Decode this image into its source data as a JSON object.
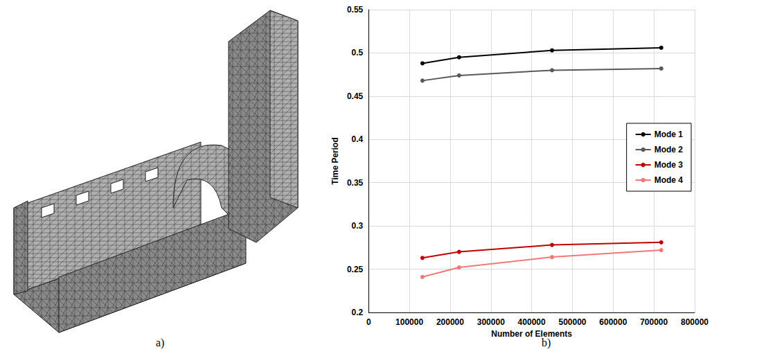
{
  "panel_labels": [
    "a)",
    "b)"
  ],
  "chart_data": {
    "type": "line",
    "x_label": "Number of Elements",
    "y_label": "Time Period",
    "x": [
      132000,
      222000,
      450000,
      718000
    ],
    "series": [
      {
        "name": "Mode 1",
        "color": "#000000",
        "values": [
          0.488,
          0.495,
          0.503,
          0.506
        ]
      },
      {
        "name": "Mode 2",
        "color": "#595959",
        "values": [
          0.468,
          0.474,
          0.48,
          0.482
        ]
      },
      {
        "name": "Mode 3",
        "color": "#c00000",
        "values": [
          0.263,
          0.27,
          0.278,
          0.281
        ]
      },
      {
        "name": "Mode 4",
        "color": "#f07878",
        "values": [
          0.241,
          0.252,
          0.264,
          0.272
        ]
      }
    ],
    "xlim": [
      0,
      800000
    ],
    "xticks": [
      0,
      100000,
      200000,
      300000,
      400000,
      500000,
      600000,
      700000,
      800000
    ],
    "ylim": [
      0.2,
      0.55
    ],
    "yticks": [
      0.2,
      0.25,
      0.3,
      0.35,
      0.4,
      0.45,
      0.5,
      0.55
    ],
    "grid": true,
    "legend": "right",
    "marker": "circle"
  }
}
